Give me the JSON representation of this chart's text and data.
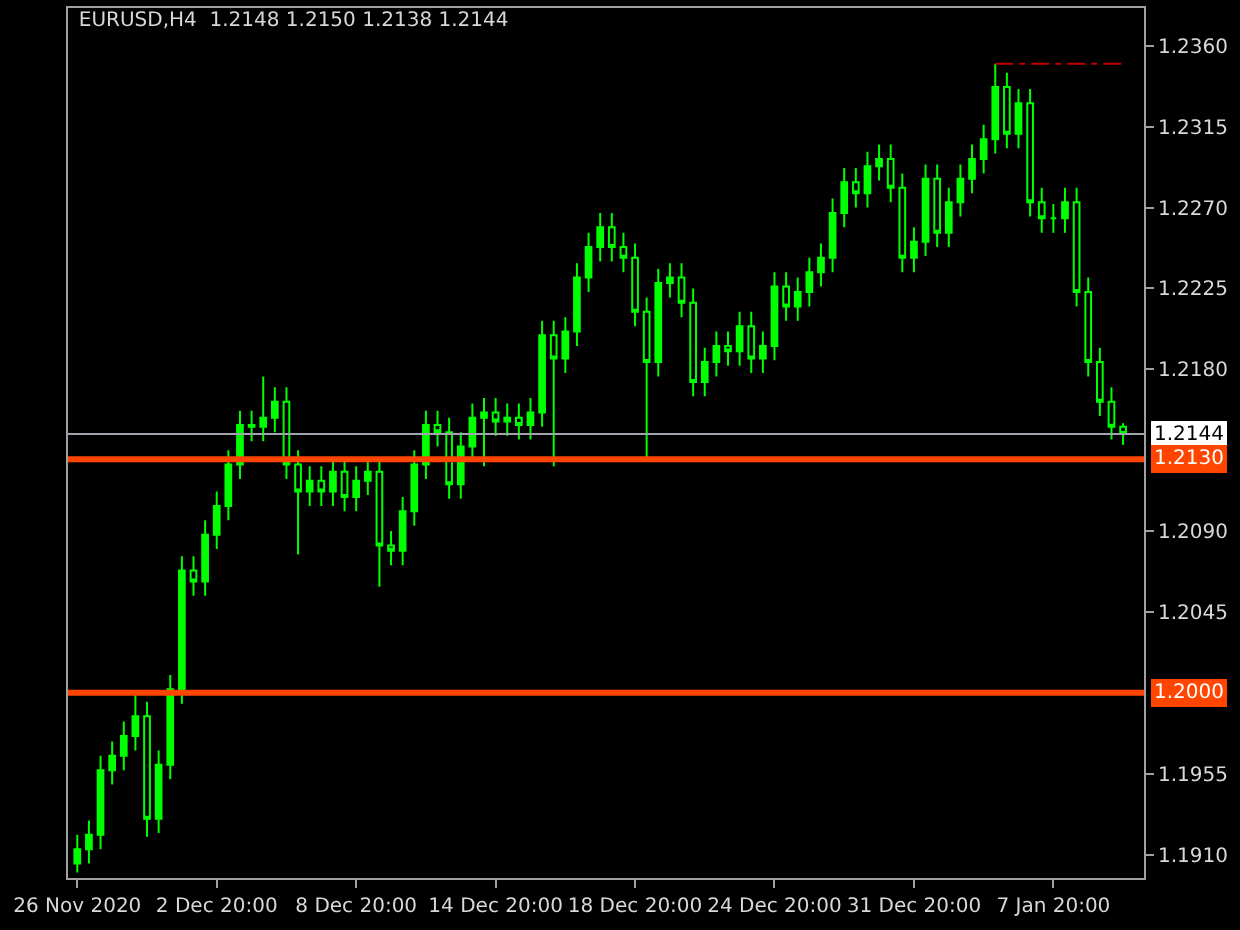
{
  "chart_data": {
    "type": "candlestick",
    "title": "EURUSD,H4  1.2148 1.2150 1.2138 1.2144",
    "color": "#00ff00",
    "categories": [
      "26 Nov 2020",
      null,
      null,
      null,
      null,
      null,
      null,
      null,
      null,
      null,
      null,
      null,
      "2 Dec 20:00",
      null,
      null,
      null,
      null,
      null,
      null,
      null,
      null,
      null,
      null,
      null,
      "8 Dec 20:00",
      null,
      null,
      null,
      null,
      null,
      null,
      null,
      null,
      null,
      null,
      null,
      "14 Dec 20:00",
      null,
      null,
      null,
      null,
      null,
      null,
      null,
      null,
      null,
      null,
      null,
      "18 Dec 20:00",
      null,
      null,
      null,
      null,
      null,
      null,
      null,
      null,
      null,
      null,
      null,
      "24 Dec 20:00",
      null,
      null,
      null,
      null,
      null,
      null,
      null,
      null,
      null,
      null,
      null,
      "31 Dec 20:00",
      null,
      null,
      null,
      null,
      null,
      null,
      null,
      null,
      null,
      null,
      null,
      "7 Jan 20:00",
      null,
      null,
      null,
      null,
      null,
      null
    ],
    "ohlc": [
      [
        1.1905,
        1.1921,
        1.19,
        1.1913
      ],
      [
        1.1913,
        1.1929,
        1.1905,
        1.1921
      ],
      [
        1.1921,
        1.1965,
        1.1913,
        1.1957
      ],
      [
        1.1957,
        1.1973,
        1.1949,
        1.1965
      ],
      [
        1.1965,
        1.1984,
        1.1957,
        1.1976
      ],
      [
        1.1976,
        1.2,
        1.1968,
        1.1987
      ],
      [
        1.1987,
        1.1995,
        1.192,
        1.193
      ],
      [
        1.193,
        1.1968,
        1.1922,
        1.196
      ],
      [
        1.196,
        1.201,
        1.1952,
        1.2002
      ],
      [
        1.2002,
        1.2076,
        1.1994,
        1.2068
      ],
      [
        1.2068,
        1.2076,
        1.2054,
        1.2062
      ],
      [
        1.2062,
        1.2096,
        1.2054,
        1.2088
      ],
      [
        1.2088,
        1.2112,
        1.208,
        1.2104
      ],
      [
        1.2104,
        1.2135,
        1.2096,
        1.2127
      ],
      [
        1.2127,
        1.2157,
        1.2119,
        1.2149
      ],
      [
        1.2149,
        1.2157,
        1.214,
        1.2148
      ],
      [
        1.2148,
        1.2176,
        1.214,
        1.2153
      ],
      [
        1.2153,
        1.217,
        1.2145,
        1.2162
      ],
      [
        1.2162,
        1.217,
        1.2119,
        1.2127
      ],
      [
        1.2127,
        1.2135,
        1.2077,
        1.2112
      ],
      [
        1.2112,
        1.2126,
        1.2104,
        1.2118
      ],
      [
        1.2118,
        1.2126,
        1.2104,
        1.2112
      ],
      [
        1.2112,
        1.2131,
        1.2104,
        1.2123
      ],
      [
        1.2123,
        1.2131,
        1.2101,
        1.2109
      ],
      [
        1.2109,
        1.2126,
        1.2101,
        1.2118
      ],
      [
        1.2118,
        1.2131,
        1.211,
        1.2123
      ],
      [
        1.2123,
        1.2131,
        1.2059,
        1.2082
      ],
      [
        1.2082,
        1.209,
        1.2071,
        1.2079
      ],
      [
        1.2079,
        1.2109,
        1.2071,
        1.2101
      ],
      [
        1.2101,
        1.2135,
        1.2093,
        1.2127
      ],
      [
        1.2127,
        1.2157,
        1.2119,
        1.2149
      ],
      [
        1.2149,
        1.2157,
        1.2137,
        1.2145
      ],
      [
        1.2145,
        1.2153,
        1.2108,
        1.2116
      ],
      [
        1.2116,
        1.2145,
        1.2108,
        1.2137
      ],
      [
        1.2137,
        1.2161,
        1.2129,
        1.2153
      ],
      [
        1.2153,
        1.2164,
        1.2126,
        1.2156
      ],
      [
        1.2156,
        1.2164,
        1.2143,
        1.2151
      ],
      [
        1.2151,
        1.2161,
        1.2143,
        1.2153
      ],
      [
        1.2153,
        1.2161,
        1.2141,
        1.2149
      ],
      [
        1.2149,
        1.2164,
        1.2141,
        1.2156
      ],
      [
        1.2156,
        1.2207,
        1.2148,
        1.2199
      ],
      [
        1.2199,
        1.2207,
        1.2126,
        1.2186
      ],
      [
        1.2186,
        1.2209,
        1.2178,
        1.2201
      ],
      [
        1.2201,
        1.2239,
        1.2193,
        1.2231
      ],
      [
        1.2231,
        1.2256,
        1.2223,
        1.2248
      ],
      [
        1.2248,
        1.2267,
        1.224,
        1.2259
      ],
      [
        1.2259,
        1.2267,
        1.224,
        1.2248
      ],
      [
        1.2248,
        1.2256,
        1.2234,
        1.2242
      ],
      [
        1.2242,
        1.225,
        1.2204,
        1.2212
      ],
      [
        1.2212,
        1.222,
        1.213,
        1.2184
      ],
      [
        1.2184,
        1.2236,
        1.2176,
        1.2228
      ],
      [
        1.2228,
        1.2239,
        1.222,
        1.2231
      ],
      [
        1.2231,
        1.2239,
        1.2209,
        1.2217
      ],
      [
        1.2217,
        1.2225,
        1.2165,
        1.2173
      ],
      [
        1.2173,
        1.2192,
        1.2165,
        1.2184
      ],
      [
        1.2184,
        1.2201,
        1.2176,
        1.2193
      ],
      [
        1.2193,
        1.2201,
        1.2182,
        1.219
      ],
      [
        1.219,
        1.2212,
        1.2182,
        1.2204
      ],
      [
        1.2204,
        1.2212,
        1.2178,
        1.2186
      ],
      [
        1.2186,
        1.2201,
        1.2178,
        1.2193
      ],
      [
        1.2193,
        1.2234,
        1.2185,
        1.2226
      ],
      [
        1.2226,
        1.2234,
        1.2207,
        1.2215
      ],
      [
        1.2215,
        1.2231,
        1.2207,
        1.2223
      ],
      [
        1.2223,
        1.2242,
        1.2215,
        1.2234
      ],
      [
        1.2234,
        1.225,
        1.2226,
        1.2242
      ],
      [
        1.2242,
        1.2275,
        1.2234,
        1.2267
      ],
      [
        1.2267,
        1.2292,
        1.2259,
        1.2284
      ],
      [
        1.2284,
        1.2292,
        1.227,
        1.2278
      ],
      [
        1.2278,
        1.2301,
        1.227,
        1.2293
      ],
      [
        1.2293,
        1.2305,
        1.2285,
        1.2297
      ],
      [
        1.2297,
        1.2305,
        1.2273,
        1.2281
      ],
      [
        1.2281,
        1.2289,
        1.2234,
        1.2242
      ],
      [
        1.2242,
        1.2259,
        1.2234,
        1.2251
      ],
      [
        1.2251,
        1.2294,
        1.2243,
        1.2286
      ],
      [
        1.2286,
        1.2294,
        1.2248,
        1.2256
      ],
      [
        1.2256,
        1.2281,
        1.2248,
        1.2273
      ],
      [
        1.2273,
        1.2294,
        1.2265,
        1.2286
      ],
      [
        1.2286,
        1.2305,
        1.2278,
        1.2297
      ],
      [
        1.2297,
        1.2316,
        1.2289,
        1.2308
      ],
      [
        1.2308,
        1.235,
        1.23,
        1.2337
      ],
      [
        1.2337,
        1.2345,
        1.2303,
        1.2311
      ],
      [
        1.2311,
        1.2336,
        1.2303,
        1.2328
      ],
      [
        1.2328,
        1.2336,
        1.2265,
        1.2273
      ],
      [
        1.2273,
        1.2281,
        1.2256,
        1.2264
      ],
      [
        1.2264,
        1.2272,
        1.2256,
        1.2264
      ],
      [
        1.2264,
        1.2281,
        1.2256,
        1.2273
      ],
      [
        1.2273,
        1.2281,
        1.2215,
        1.2223
      ],
      [
        1.2223,
        1.2231,
        1.2176,
        1.2184
      ],
      [
        1.2184,
        1.2192,
        1.2154,
        1.2162
      ],
      [
        1.2162,
        1.217,
        1.2141,
        1.2148
      ],
      [
        1.2148,
        1.215,
        1.2138,
        1.2144
      ]
    ],
    "series": [
      {
        "type": "line",
        "color": "#c00000",
        "line_style": "dashed",
        "values": [
          null,
          null,
          null,
          null,
          null,
          null,
          null,
          null,
          null,
          null,
          null,
          null,
          null,
          null,
          null,
          null,
          null,
          null,
          null,
          null,
          null,
          null,
          null,
          null,
          null,
          null,
          null,
          null,
          null,
          null,
          null,
          null,
          null,
          null,
          null,
          null,
          null,
          null,
          null,
          null,
          null,
          null,
          null,
          null,
          null,
          null,
          null,
          null,
          null,
          null,
          null,
          null,
          null,
          null,
          null,
          null,
          null,
          null,
          null,
          null,
          null,
          null,
          null,
          null,
          null,
          null,
          null,
          null,
          null,
          null,
          null,
          null,
          null,
          null,
          null,
          null,
          null,
          null,
          null,
          1.235,
          1.235,
          1.235,
          1.235,
          1.235,
          1.235,
          1.235,
          1.235,
          1.235,
          1.235,
          1.235,
          1.235
        ]
      }
    ],
    "ref_lines": [
      {
        "axis": "y",
        "value": 1.2144,
        "label": "1.2144",
        "color": "#a0a4ac"
      },
      {
        "axis": "y",
        "value": 1.213,
        "label": "1.2130",
        "color": "#ff4500"
      },
      {
        "axis": "y",
        "value": 1.2,
        "label": "1.2000",
        "color": "#ff4500"
      }
    ],
    "ylim": [
      1.1897,
      1.2381
    ],
    "yticks": [
      {
        "value": 1.236,
        "label": "1.2360"
      },
      {
        "value": 1.2315,
        "label": "1.2315"
      },
      {
        "value": 1.227,
        "label": "1.2270"
      },
      {
        "value": 1.2225,
        "label": "1.2225"
      },
      {
        "value": 1.218,
        "label": "1.2180"
      },
      {
        "value": 1.209,
        "label": "1.2090"
      },
      {
        "value": 1.2045,
        "label": "1.2045"
      },
      {
        "value": 1.1955,
        "label": "1.1955"
      },
      {
        "value": 1.191,
        "label": "1.1910"
      }
    ],
    "grid": false
  }
}
